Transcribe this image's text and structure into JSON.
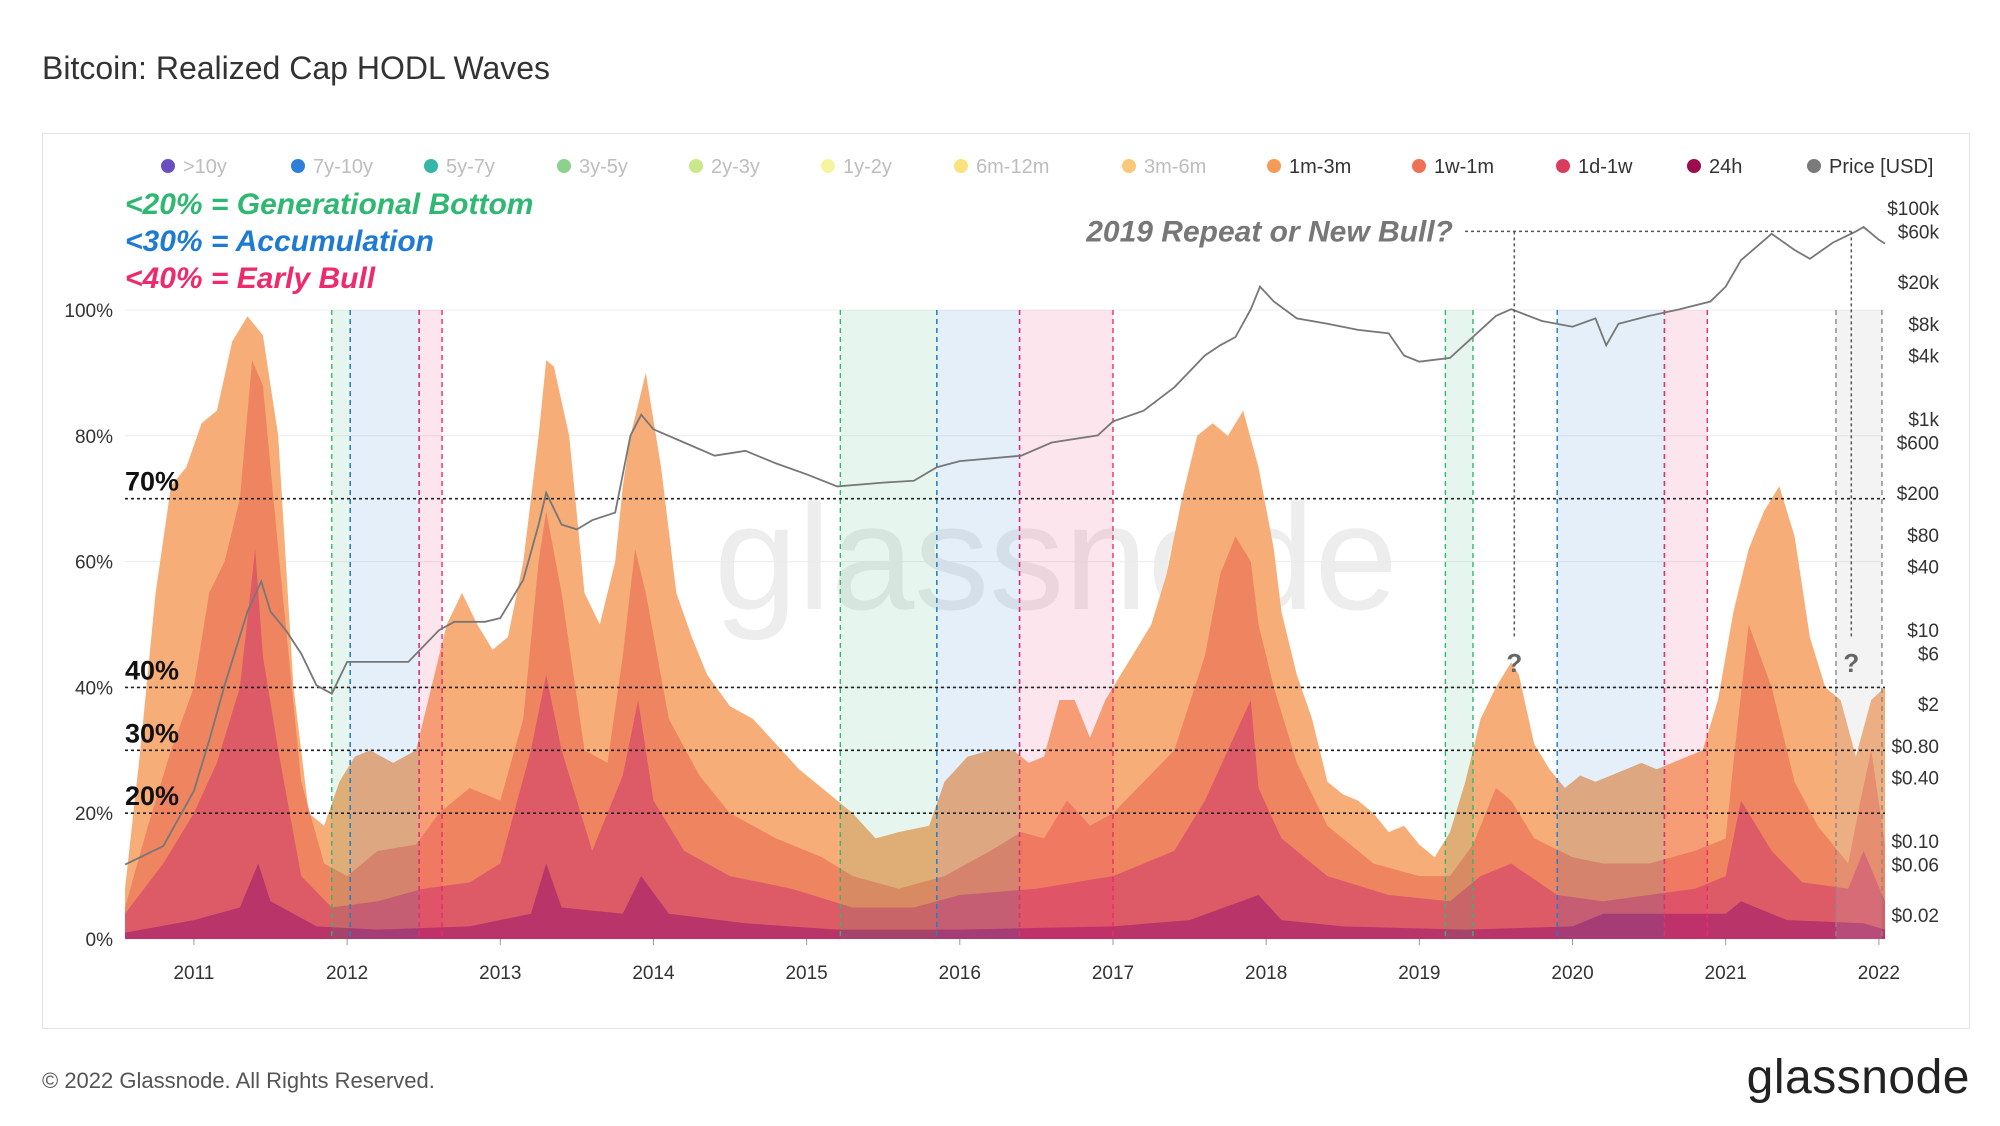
{
  "title": "Bitcoin: Realized Cap HODL Waves",
  "footer": {
    "copyright": "© 2022 Glassnode. All Rights Reserved.",
    "logo": "glassnode",
    "watermark": "glassnode"
  },
  "colors": {
    "band_1m_3m": "#f7ad77",
    "band_1w_1m": "#ef8460",
    "band_1d_1w": "#dd5a67",
    "band_24h": "#b83469",
    "price_line": "#777777",
    "generational_bottom": "#2eb872",
    "accumulation": "#1f7bd1",
    "early_bull": "#ee2a6a"
  },
  "chart_data": {
    "type": "area",
    "title": "Bitcoin: Realized Cap HODL Waves",
    "legend": [
      {
        "name": ">10y",
        "color": "#6a4fc1",
        "dim": true
      },
      {
        "name": "7y-10y",
        "color": "#2f7ed8",
        "dim": true
      },
      {
        "name": "5y-7y",
        "color": "#36b6a8",
        "dim": true
      },
      {
        "name": "3y-5y",
        "color": "#8ed08e",
        "dim": true
      },
      {
        "name": "2y-3y",
        "color": "#c8e88a",
        "dim": true
      },
      {
        "name": "1y-2y",
        "color": "#f6f4a0",
        "dim": true
      },
      {
        "name": "6m-12m",
        "color": "#fbe27d",
        "dim": true
      },
      {
        "name": "3m-6m",
        "color": "#f9c878",
        "dim": true
      },
      {
        "name": "1m-3m",
        "color": "#f59b58",
        "dim": false
      },
      {
        "name": "1w-1m",
        "color": "#ef7055",
        "dim": false
      },
      {
        "name": "1d-1w",
        "color": "#d93c5c",
        "dim": false
      },
      {
        "name": "24h",
        "color": "#9b0d4c",
        "dim": false
      },
      {
        "name": "Price [USD]",
        "color": "#7a7a7a",
        "dim": false
      }
    ],
    "legend_placement": "top",
    "x_ticks": [
      "2011",
      "2012",
      "2013",
      "2014",
      "2015",
      "2016",
      "2017",
      "2018",
      "2019",
      "2020",
      "2021",
      "2022"
    ],
    "xlim": [
      2010.55,
      2022.04
    ],
    "y_left": {
      "ticks": [
        "0%",
        "20%",
        "40%",
        "60%",
        "80%",
        "100%"
      ],
      "ylim": [
        0,
        100
      ]
    },
    "y_right": {
      "scale": "log",
      "ticks": [
        "$0.02",
        "$0.06",
        "$0.10",
        "$0.40",
        "$0.80",
        "$2",
        "$6",
        "$10",
        "$40",
        "$80",
        "$200",
        "$600",
        "$1k",
        "$4k",
        "$8k",
        "$20k",
        "$60k",
        "$100k"
      ],
      "tick_values": [
        0.02,
        0.06,
        0.1,
        0.4,
        0.8,
        2,
        6,
        10,
        40,
        80,
        200,
        600,
        1000,
        4000,
        8000,
        20000,
        60000,
        100000
      ]
    },
    "grid": true,
    "series": [
      {
        "name": "1m-3m",
        "color": "#f7ad77",
        "x": [
          2010.55,
          2010.65,
          2010.75,
          2010.85,
          2010.95,
          2011.05,
          2011.15,
          2011.25,
          2011.35,
          2011.45,
          2011.55,
          2011.65,
          2011.75,
          2011.85,
          2011.95,
          2012.05,
          2012.15,
          2012.3,
          2012.45,
          2012.55,
          2012.65,
          2012.75,
          2012.85,
          2012.95,
          2013.05,
          2013.15,
          2013.25,
          2013.3,
          2013.35,
          2013.45,
          2013.55,
          2013.65,
          2013.75,
          2013.8,
          2013.85,
          2013.95,
          2014.05,
          2014.15,
          2014.25,
          2014.35,
          2014.5,
          2014.65,
          2014.8,
          2014.95,
          2015.1,
          2015.2,
          2015.3,
          2015.45,
          2015.6,
          2015.8,
          2015.9,
          2016.05,
          2016.2,
          2016.35,
          2016.45,
          2016.55,
          2016.65,
          2016.75,
          2016.85,
          2016.95,
          2017.05,
          2017.15,
          2017.25,
          2017.35,
          2017.45,
          2017.55,
          2017.65,
          2017.75,
          2017.85,
          2017.95,
          2018.05,
          2018.1,
          2018.2,
          2018.3,
          2018.4,
          2018.5,
          2018.6,
          2018.7,
          2018.8,
          2018.9,
          2019.0,
          2019.1,
          2019.2,
          2019.3,
          2019.4,
          2019.5,
          2019.6,
          2019.65,
          2019.75,
          2019.85,
          2019.95,
          2020.05,
          2020.15,
          2020.25,
          2020.35,
          2020.45,
          2020.55,
          2020.65,
          2020.75,
          2020.85,
          2020.95,
          2021.05,
          2021.15,
          2021.25,
          2021.35,
          2021.45,
          2021.55,
          2021.65,
          2021.75,
          2021.85,
          2021.95,
          2022.04
        ],
        "values": [
          8,
          30,
          55,
          72,
          75,
          82,
          84,
          95,
          99,
          96,
          80,
          40,
          20,
          18,
          25,
          29,
          30,
          28,
          30,
          40,
          50,
          55,
          50,
          46,
          48,
          60,
          80,
          92,
          91,
          80,
          55,
          50,
          60,
          72,
          80,
          90,
          75,
          55,
          48,
          42,
          37,
          35,
          31,
          27,
          24,
          22,
          20,
          16,
          17,
          18,
          25,
          29,
          30,
          30,
          28,
          29,
          38,
          38,
          32,
          38,
          42,
          46,
          50,
          58,
          70,
          80,
          82,
          80,
          84,
          75,
          62,
          52,
          42,
          35,
          25,
          23,
          22,
          20,
          17,
          18,
          15,
          13,
          17,
          25,
          35,
          40,
          44,
          42,
          31,
          27,
          24,
          26,
          25,
          26,
          27,
          28,
          27,
          28,
          29,
          30,
          38,
          52,
          62,
          68,
          72,
          64,
          48,
          40,
          38,
          29,
          38,
          40
        ]
      },
      {
        "name": "1w-1m",
        "color": "#ef8460",
        "x": [
          2010.55,
          2010.7,
          2010.85,
          2011.0,
          2011.1,
          2011.2,
          2011.3,
          2011.38,
          2011.45,
          2011.55,
          2011.7,
          2011.85,
          2012.0,
          2012.2,
          2012.45,
          2012.6,
          2012.8,
          2013.0,
          2013.15,
          2013.25,
          2013.3,
          2013.4,
          2013.55,
          2013.7,
          2013.8,
          2013.88,
          2013.95,
          2014.1,
          2014.3,
          2014.5,
          2014.8,
          2015.1,
          2015.3,
          2015.6,
          2015.9,
          2016.2,
          2016.4,
          2016.55,
          2016.7,
          2016.85,
          2017.0,
          2017.2,
          2017.4,
          2017.6,
          2017.7,
          2017.8,
          2017.9,
          2017.95,
          2018.05,
          2018.2,
          2018.4,
          2018.7,
          2019.0,
          2019.2,
          2019.35,
          2019.5,
          2019.6,
          2019.75,
          2020.0,
          2020.2,
          2020.5,
          2020.8,
          2021.0,
          2021.05,
          2021.15,
          2021.3,
          2021.45,
          2021.6,
          2021.8,
          2021.88,
          2021.95,
          2022.04
        ],
        "values": [
          5,
          18,
          30,
          40,
          55,
          60,
          70,
          92,
          88,
          62,
          25,
          12,
          10,
          14,
          15,
          20,
          24,
          22,
          35,
          60,
          68,
          55,
          30,
          28,
          45,
          62,
          55,
          35,
          26,
          20,
          16,
          13,
          10,
          8,
          10,
          14,
          17,
          16,
          22,
          18,
          20,
          25,
          30,
          45,
          58,
          64,
          60,
          50,
          40,
          28,
          18,
          12,
          10,
          10,
          15,
          24,
          22,
          16,
          13,
          12,
          12,
          14,
          16,
          28,
          50,
          40,
          25,
          18,
          12,
          22,
          30,
          15
        ]
      },
      {
        "name": "1d-1w",
        "color": "#dd5a67",
        "x": [
          2010.55,
          2010.8,
          2011.0,
          2011.15,
          2011.3,
          2011.4,
          2011.45,
          2011.55,
          2011.7,
          2011.9,
          2012.2,
          2012.5,
          2012.8,
          2013.0,
          2013.2,
          2013.3,
          2013.4,
          2013.6,
          2013.8,
          2013.9,
          2014.0,
          2014.2,
          2014.5,
          2014.9,
          2015.3,
          2015.7,
          2016.0,
          2016.5,
          2017.0,
          2017.4,
          2017.6,
          2017.75,
          2017.9,
          2017.95,
          2018.1,
          2018.4,
          2018.8,
          2019.2,
          2019.4,
          2019.6,
          2019.9,
          2020.2,
          2020.5,
          2020.8,
          2021.0,
          2021.1,
          2021.3,
          2021.5,
          2021.8,
          2021.9,
          2022.04
        ],
        "values": [
          4,
          12,
          20,
          28,
          40,
          62,
          45,
          30,
          10,
          5,
          6,
          8,
          9,
          12,
          30,
          42,
          30,
          14,
          26,
          38,
          22,
          14,
          10,
          8,
          5,
          5,
          7,
          8,
          10,
          14,
          22,
          30,
          38,
          24,
          16,
          10,
          7,
          6,
          10,
          12,
          7,
          6,
          7,
          8,
          10,
          22,
          14,
          9,
          8,
          14,
          6
        ]
      },
      {
        "name": "24h",
        "color": "#b83469",
        "x": [
          2010.55,
          2011.0,
          2011.3,
          2011.42,
          2011.5,
          2011.8,
          2012.2,
          2012.8,
          2013.2,
          2013.3,
          2013.4,
          2013.8,
          2013.92,
          2014.1,
          2014.6,
          2015.2,
          2016.0,
          2017.0,
          2017.5,
          2017.95,
          2018.1,
          2018.5,
          2019.3,
          2020.0,
          2020.2,
          2021.0,
          2021.1,
          2021.4,
          2021.9,
          2022.04
        ],
        "values": [
          1,
          3,
          5,
          12,
          6,
          2,
          1.5,
          2,
          4,
          12,
          5,
          4,
          10,
          4,
          2.5,
          1.5,
          1.5,
          2,
          3,
          7,
          3,
          2,
          1.5,
          2,
          4,
          4,
          6,
          3,
          2.5,
          1.5
        ]
      }
    ],
    "price_usd": {
      "x": [
        2010.55,
        2010.8,
        2011.0,
        2011.1,
        2011.2,
        2011.35,
        2011.44,
        2011.5,
        2011.6,
        2011.7,
        2011.8,
        2011.9,
        2012.0,
        2012.2,
        2012.4,
        2012.6,
        2012.7,
        2012.9,
        2013.0,
        2013.15,
        2013.25,
        2013.3,
        2013.4,
        2013.5,
        2013.6,
        2013.75,
        2013.85,
        2013.92,
        2014.0,
        2014.2,
        2014.4,
        2014.6,
        2014.8,
        2015.0,
        2015.2,
        2015.5,
        2015.7,
        2015.85,
        2016.0,
        2016.4,
        2016.6,
        2016.9,
        2017.0,
        2017.2,
        2017.4,
        2017.6,
        2017.7,
        2017.8,
        2017.9,
        2017.96,
        2018.05,
        2018.2,
        2018.4,
        2018.6,
        2018.8,
        2018.9,
        2019.0,
        2019.2,
        2019.4,
        2019.5,
        2019.6,
        2019.8,
        2020.0,
        2020.15,
        2020.22,
        2020.3,
        2020.5,
        2020.7,
        2020.9,
        2021.0,
        2021.1,
        2021.3,
        2021.45,
        2021.55,
        2021.7,
        2021.85,
        2021.9,
        2022.0,
        2022.04
      ],
      "values": [
        0.06,
        0.09,
        0.3,
        0.9,
        3,
        15,
        29,
        15,
        10,
        6,
        3,
        2.5,
        5,
        5,
        5,
        10,
        12,
        12,
        13,
        30,
        100,
        200,
        100,
        90,
        110,
        130,
        700,
        1100,
        800,
        600,
        450,
        500,
        380,
        300,
        230,
        250,
        260,
        350,
        400,
        450,
        600,
        700,
        950,
        1200,
        2000,
        4000,
        5000,
        6000,
        11000,
        18000,
        13000,
        9000,
        8000,
        7000,
        6500,
        4000,
        3500,
        3800,
        7000,
        9500,
        11000,
        8500,
        7500,
        9000,
        5000,
        8000,
        9500,
        11000,
        13000,
        18000,
        32000,
        57000,
        40000,
        33000,
        47000,
        60000,
        66000,
        50000,
        46000
      ]
    },
    "zones": [
      {
        "name": "generational-bottom",
        "x0": 2011.9,
        "x1": 2012.02,
        "color": "#2eb872"
      },
      {
        "name": "accumulation",
        "x0": 2012.02,
        "x1": 2012.47,
        "color": "#1f7bd1"
      },
      {
        "name": "early-bull",
        "x0": 2012.47,
        "x1": 2012.62,
        "color": "#ee2a6a"
      },
      {
        "name": "generational-bottom",
        "x0": 2015.22,
        "x1": 2015.85,
        "color": "#2eb872"
      },
      {
        "name": "accumulation",
        "x0": 2015.85,
        "x1": 2016.39,
        "color": "#1f7bd1"
      },
      {
        "name": "early-bull",
        "x0": 2016.39,
        "x1": 2017.0,
        "color": "#ee2a6a"
      },
      {
        "name": "generational-bottom",
        "x0": 2019.17,
        "x1": 2019.35,
        "color": "#2eb872"
      },
      {
        "name": "accumulation",
        "x0": 2019.9,
        "x1": 2020.6,
        "color": "#1f7bd1"
      },
      {
        "name": "early-bull",
        "x0": 2020.6,
        "x1": 2020.88,
        "color": "#ee2a6a"
      },
      {
        "name": "projection",
        "x0": 2021.72,
        "x1": 2022.02,
        "color": "#bbbbbb"
      }
    ],
    "levels": [
      {
        "label": "70%",
        "value": 70
      },
      {
        "label": "40%",
        "value": 40
      },
      {
        "label": "30%",
        "value": 30
      },
      {
        "label": "20%",
        "value": 20
      }
    ],
    "annotations": {
      "generational_bottom": "<20% = Generational Bottom",
      "accumulation": "<30% = Accumulation",
      "early_bull": "<40% = Early Bull",
      "question": "2019 Repeat or New Bull?",
      "question_mark": "?",
      "question_x": [
        2019.62,
        2021.82
      ]
    }
  }
}
